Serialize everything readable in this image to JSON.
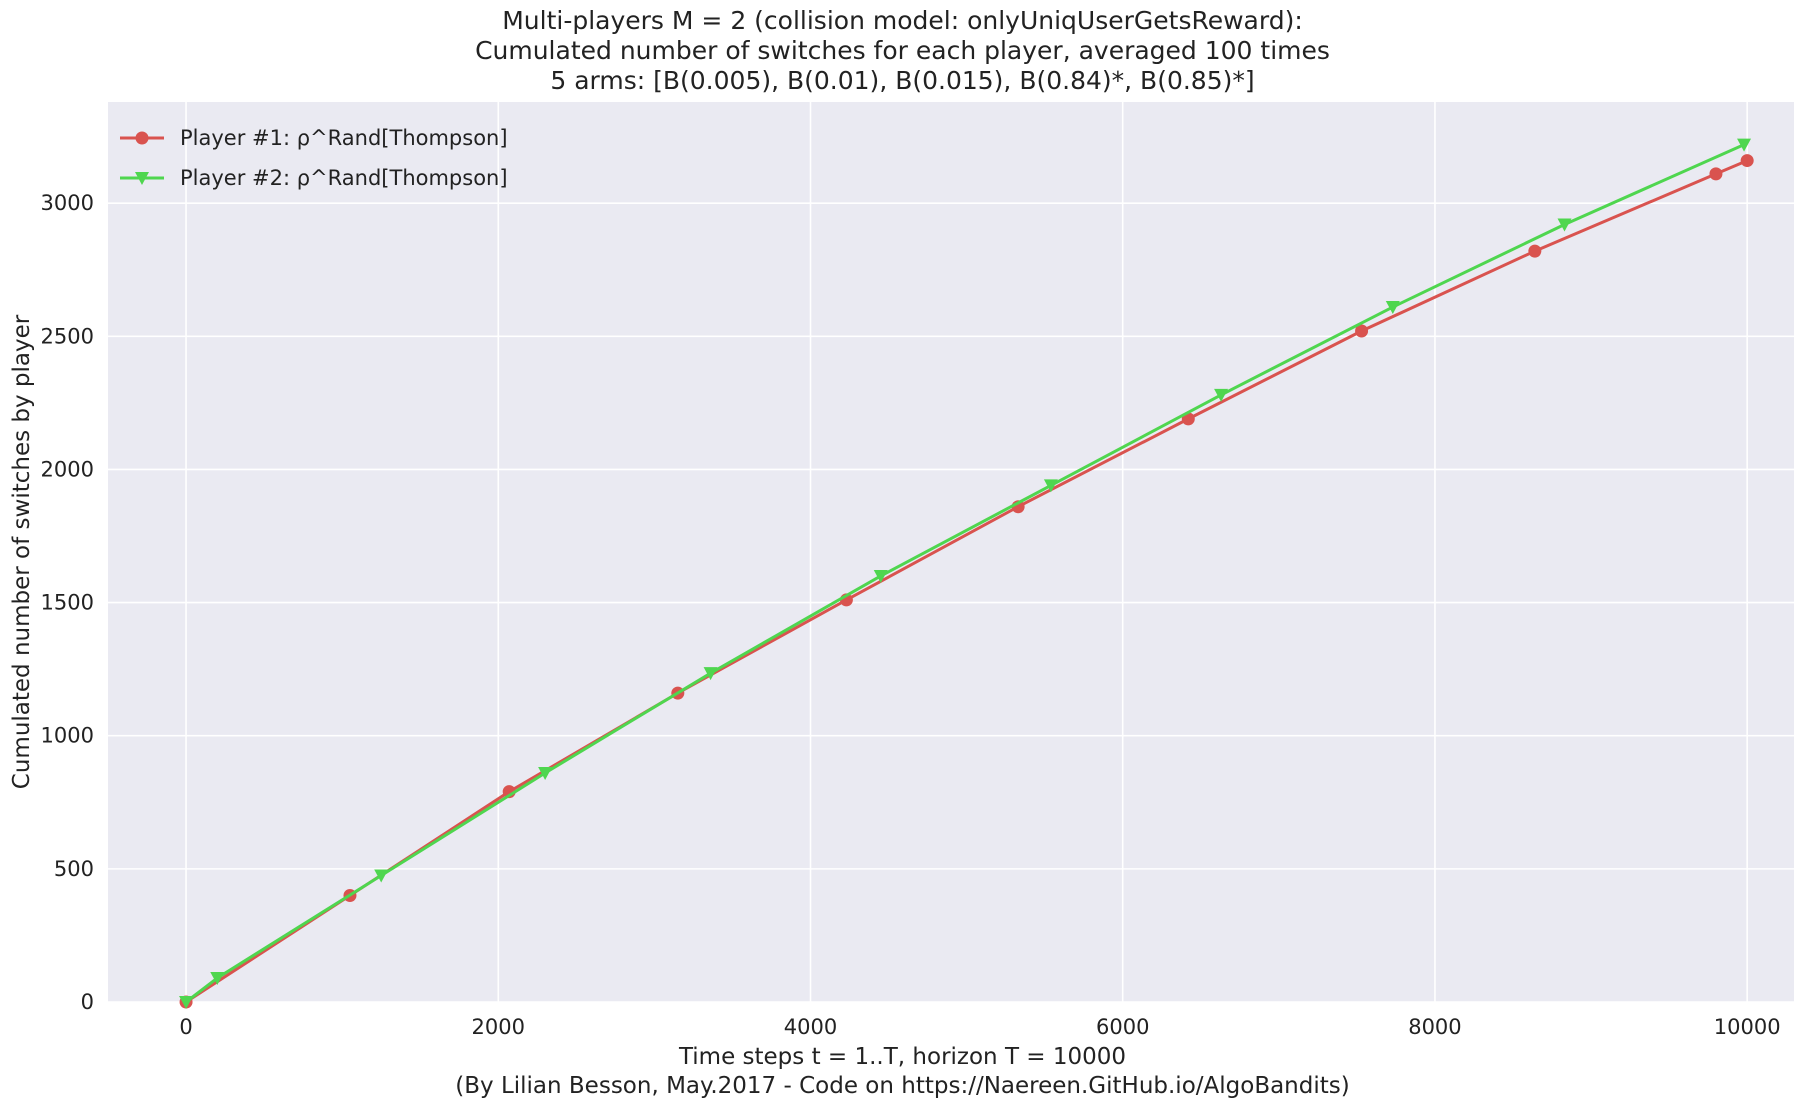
{
  "chart_data": {
    "type": "line",
    "title_lines": [
      "Multi-players M = 2 (collision model: onlyUniqUserGetsReward):",
      "Cumulated number of switches for each player, averaged 100 times",
      "5 arms: [B(0.005), B(0.01), B(0.015), B(0.84)*, B(0.85)*]"
    ],
    "xlabel": "Time steps t = 1..T, horizon T = 10000",
    "footer": "(By Lilian Besson, May.2017 - Code on https://Naereen.GitHub.io/AlgoBandits)",
    "ylabel": "Cumulated number of switches by player",
    "xlim": [
      -500,
      10300
    ],
    "ylim": [
      0,
      3380
    ],
    "xticks": [
      0,
      2000,
      4000,
      6000,
      8000,
      10000
    ],
    "yticks": [
      0,
      500,
      1000,
      1500,
      2000,
      2500,
      3000
    ],
    "grid": true,
    "legend_position": "top-left",
    "series": [
      {
        "name": "Player #1: ρ^Rand[Thompson]",
        "color": "#d9534f",
        "marker": "circle",
        "x": [
          0,
          1050,
          2070,
          3150,
          4230,
          5330,
          6420,
          7530,
          8640,
          9800,
          10000
        ],
        "y": [
          0,
          400,
          790,
          1160,
          1510,
          1860,
          2190,
          2520,
          2820,
          3110,
          3160
        ]
      },
      {
        "name": "Player #2: ρ^Rand[Thompson]",
        "color": "#4fd64f",
        "marker": "triangle-down",
        "x": [
          0,
          200,
          1250,
          2300,
          3360,
          4450,
          5540,
          6630,
          7730,
          8830,
          9980
        ],
        "y": [
          0,
          90,
          475,
          860,
          1235,
          1600,
          1940,
          2280,
          2610,
          2920,
          3220
        ]
      }
    ]
  }
}
